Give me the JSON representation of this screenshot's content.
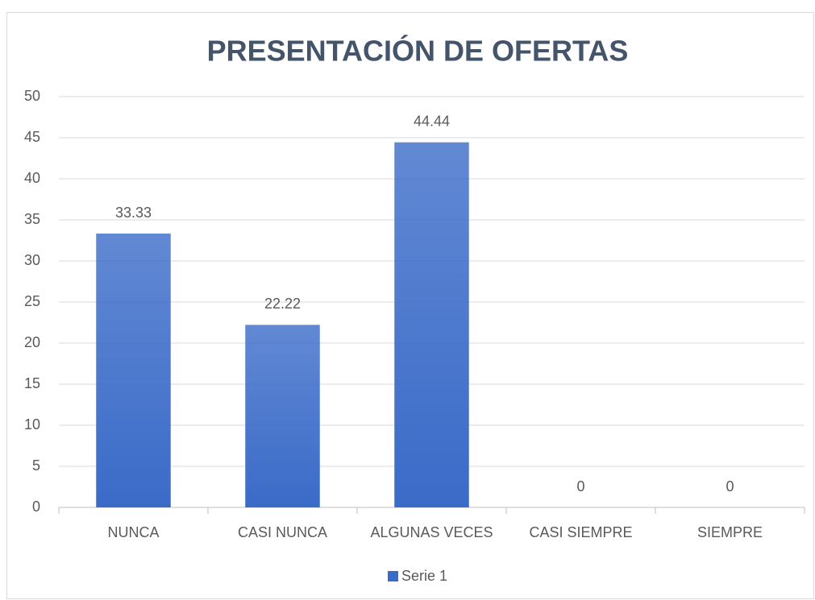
{
  "chart_data": {
    "type": "bar",
    "title": "PRESENTACIÓN DE OFERTAS",
    "categories": [
      "NUNCA",
      "CASI NUNCA",
      "ALGUNAS VECES",
      "CASI SIEMPRE",
      "SIEMPRE"
    ],
    "series": [
      {
        "name": "Serie 1",
        "color": "#3a6bc8",
        "values": [
          33.33,
          22.22,
          44.44,
          0,
          0
        ]
      }
    ],
    "ylim": [
      0,
      50
    ],
    "yticks": [
      0,
      5,
      10,
      15,
      20,
      25,
      30,
      35,
      40,
      45,
      50
    ],
    "grid": true,
    "legend": "bottom",
    "data_labels": true
  }
}
